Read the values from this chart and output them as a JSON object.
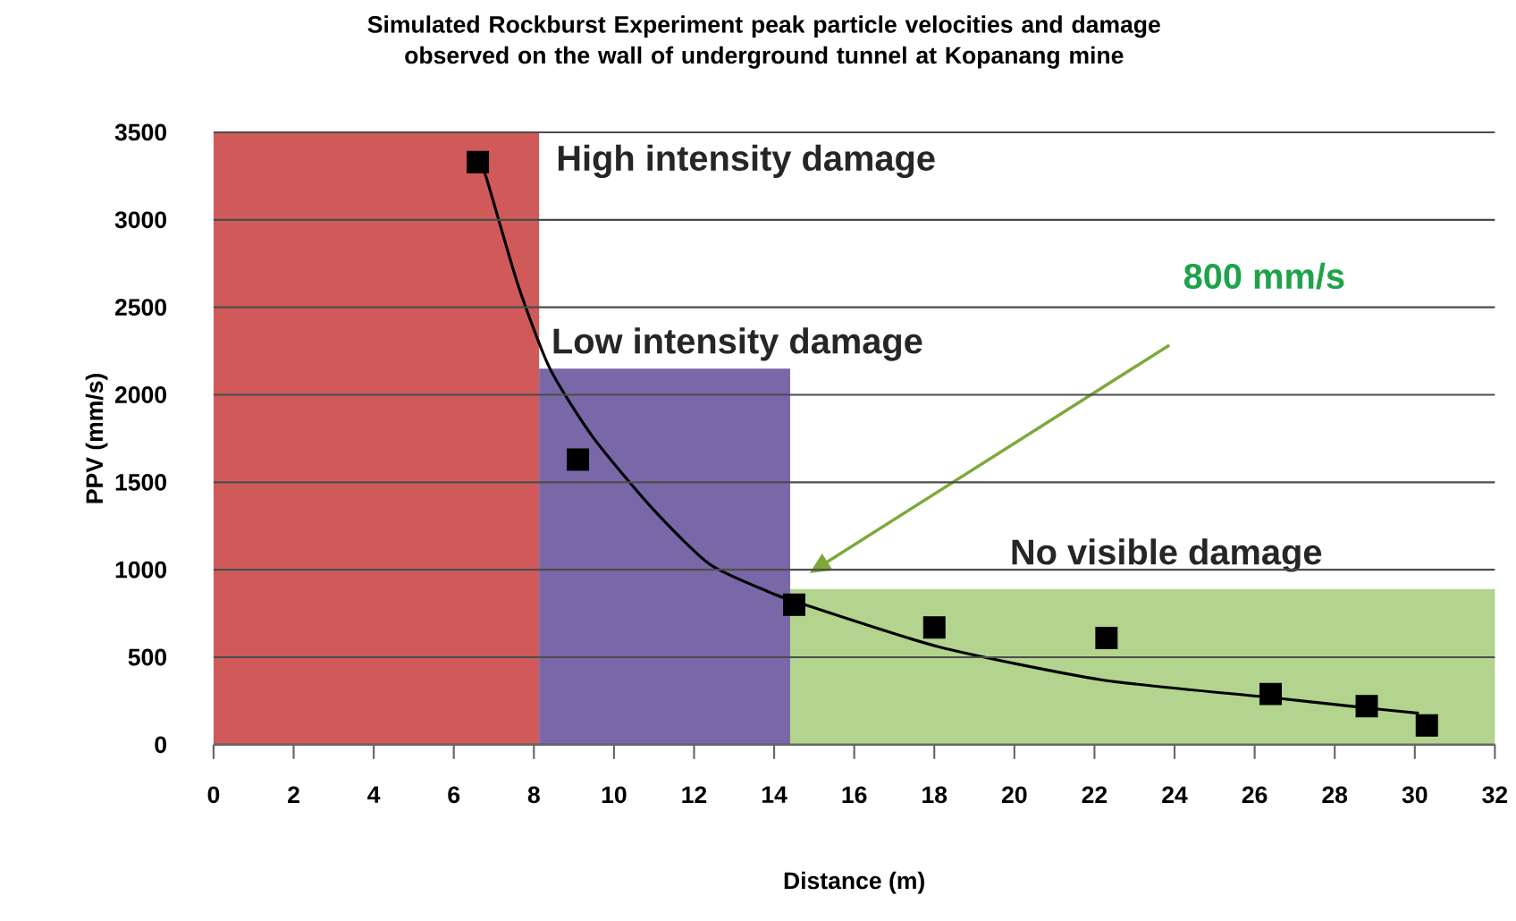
{
  "chart_data": {
    "type": "scatter",
    "title": "Simulated Rockburst Experiment peak particle velocities and damage observed on the wall of underground tunnel at Kopanang mine",
    "xlabel": "Distance (m)",
    "ylabel": "PPV (mm/s)",
    "xlim": [
      0,
      32
    ],
    "xticks": [
      0,
      2,
      4,
      6,
      8,
      10,
      12,
      14,
      16,
      18,
      20,
      22,
      24,
      26,
      28,
      30,
      32
    ],
    "ylim": [
      0,
      3500
    ],
    "yticks": [
      0,
      500,
      1000,
      1500,
      2000,
      2500,
      3000,
      3500
    ],
    "grid": "y",
    "series": [
      {
        "type": "area",
        "name": "High intensity damage",
        "color": "#d05a5a",
        "x": [
          0,
          8.13
        ],
        "values": [
          3500,
          3500
        ]
      },
      {
        "type": "area",
        "name": "Low intensity damage",
        "color": "#7868a8",
        "x": [
          8.13,
          14.4
        ],
        "values": [
          2150,
          2150
        ]
      },
      {
        "type": "area",
        "name": "No visible damage",
        "color": "#b2d48e",
        "x": [
          14.4,
          32
        ],
        "values": [
          890,
          890
        ]
      },
      {
        "type": "line",
        "color": "#000000",
        "x": [
          6.6,
          6.8,
          7.6,
          8.4,
          9.5,
          11,
          12.4,
          13.9,
          14.5,
          18.1,
          22.2,
          26.4,
          28.8,
          30.1
        ],
        "values": [
          3330,
          3250,
          2630,
          2150,
          1750,
          1340,
          1030,
          870,
          820,
          560,
          370,
          270,
          210,
          180
        ]
      },
      {
        "color": "#000000",
        "marker": "square",
        "x": [
          6.6,
          9.1,
          14.5,
          18,
          22.3,
          26.4,
          28.8,
          30.3
        ],
        "values": [
          3330,
          1630,
          800,
          670,
          610,
          290,
          220,
          110
        ]
      }
    ],
    "annotations": [
      "800 mm/s"
    ]
  }
}
